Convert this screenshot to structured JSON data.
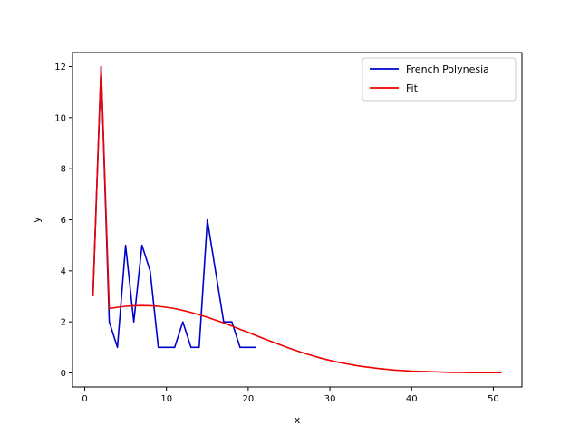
{
  "chart_data": {
    "type": "line",
    "xlabel": "x",
    "ylabel": "y",
    "xlim": [
      -1.5,
      53.5
    ],
    "ylim": [
      -0.55,
      12.55
    ],
    "xticks": [
      0,
      10,
      20,
      30,
      40,
      50
    ],
    "yticks": [
      0,
      2,
      4,
      6,
      8,
      10,
      12
    ],
    "grid": false,
    "legend_position": "top-right",
    "series": [
      {
        "name": "French Polynesia",
        "color": "#0000cc",
        "x": [
          1,
          2,
          3,
          4,
          5,
          6,
          7,
          8,
          9,
          10,
          11,
          12,
          13,
          14,
          15,
          16,
          17,
          18,
          19,
          20,
          21
        ],
        "y": [
          3,
          12,
          2,
          1,
          5,
          2,
          5,
          4,
          1,
          1,
          1,
          2,
          1,
          1,
          6,
          4,
          2,
          2,
          1,
          1,
          1
        ]
      },
      {
        "name": "Fit",
        "color": "#ee0000",
        "x": [
          1,
          2,
          3,
          4,
          5,
          6,
          7,
          8,
          9,
          10,
          11,
          12,
          13,
          14,
          15,
          16,
          17,
          18,
          19,
          20,
          21,
          22,
          23,
          24,
          25,
          26,
          27,
          28,
          29,
          30,
          31,
          32,
          33,
          34,
          35,
          36,
          37,
          38,
          39,
          40,
          41,
          42,
          43,
          44,
          45,
          46,
          47,
          48,
          49,
          50,
          51
        ],
        "y": [
          3,
          12,
          2.52,
          2.57,
          2.61,
          2.63,
          2.64,
          2.63,
          2.61,
          2.57,
          2.52,
          2.45,
          2.37,
          2.28,
          2.18,
          2.07,
          1.96,
          1.84,
          1.71,
          1.59,
          1.46,
          1.33,
          1.21,
          1.09,
          0.97,
          0.86,
          0.76,
          0.66,
          0.57,
          0.49,
          0.42,
          0.36,
          0.3,
          0.25,
          0.21,
          0.17,
          0.14,
          0.11,
          0.09,
          0.07,
          0.06,
          0.05,
          0.04,
          0.03,
          0.02,
          0.02,
          0.01,
          0.01,
          0.01,
          0.01,
          0.01
        ]
      }
    ]
  }
}
